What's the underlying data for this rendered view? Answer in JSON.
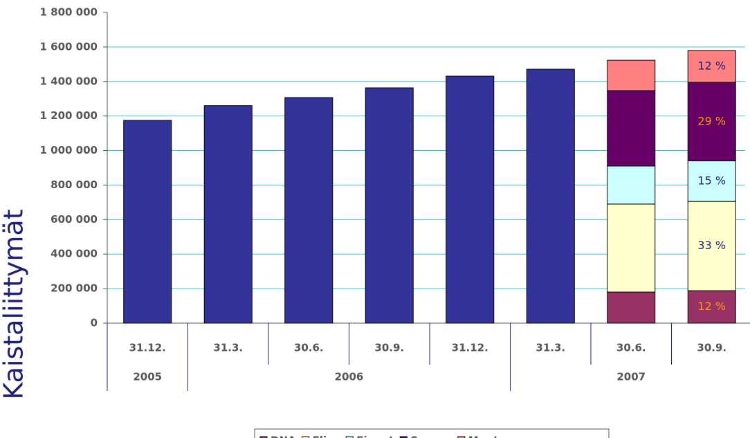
{
  "chart_data": {
    "type": "stacked_bar",
    "y_axis_label": "Kaistaliittymät",
    "categories": [
      "31.12.",
      "31.3.",
      "30.6.",
      "30.9.",
      "31.12.",
      "31.3.",
      "30.6.",
      "30.9."
    ],
    "year_groups": [
      {
        "label": "2005",
        "count": 1
      },
      {
        "label": "2006",
        "count": 4
      },
      {
        "label": "2007",
        "count": 3
      }
    ],
    "values": [
      1175000,
      1260000,
      1307000,
      1363000,
      1431000,
      1471000,
      null,
      null
    ],
    "color": "#333399",
    "series": [
      {
        "name": "DNA",
        "color": "#993366",
        "label_color": "#ff9900",
        "values": [
          null,
          null,
          null,
          null,
          null,
          null,
          180000,
          188000
        ],
        "value_labels": [
          null,
          null,
          null,
          null,
          null,
          null,
          null,
          "12 %"
        ]
      },
      {
        "name": "Elisa",
        "color": "#ffffcc",
        "label_color": "#1f1f7a",
        "values": [
          null,
          null,
          null,
          null,
          null,
          null,
          510000,
          517000
        ],
        "value_labels": [
          null,
          null,
          null,
          null,
          null,
          null,
          null,
          "33 %"
        ]
      },
      {
        "name": "Finnet",
        "color": "#ccffff",
        "label_color": "#1f1f7a",
        "values": [
          null,
          null,
          null,
          null,
          null,
          null,
          220000,
          235000
        ],
        "value_labels": [
          null,
          null,
          null,
          null,
          null,
          null,
          null,
          "15 %"
        ]
      },
      {
        "name": "Sonera",
        "color": "#660066",
        "label_color": "#ff9900",
        "values": [
          null,
          null,
          null,
          null,
          null,
          null,
          437000,
          455000
        ],
        "value_labels": [
          null,
          null,
          null,
          null,
          null,
          null,
          null,
          "29 %"
        ]
      },
      {
        "name": "Muut",
        "color": "#ff8080",
        "label_color": "#1f1f7a",
        "values": [
          null,
          null,
          null,
          null,
          null,
          null,
          176000,
          185000
        ],
        "value_labels": [
          null,
          null,
          null,
          null,
          null,
          null,
          null,
          "12 %"
        ]
      }
    ],
    "ylim": [
      0,
      1800000
    ],
    "yticks": [
      {
        "value": 0,
        "label": "0"
      },
      {
        "value": 200000,
        "label": "200 000"
      },
      {
        "value": 400000,
        "label": "400 000"
      },
      {
        "value": 600000,
        "label": "600 000"
      },
      {
        "value": 800000,
        "label": "800 000"
      },
      {
        "value": 1000000,
        "label": "1 000 000"
      },
      {
        "value": 1200000,
        "label": "1 200 000"
      },
      {
        "value": 1400000,
        "label": "1 400 000"
      },
      {
        "value": 1600000,
        "label": "1 600 000"
      },
      {
        "value": 1800000,
        "label": "1 800 000"
      }
    ],
    "grid": true,
    "grid_color": "#33cccc",
    "legend": "bottom"
  }
}
